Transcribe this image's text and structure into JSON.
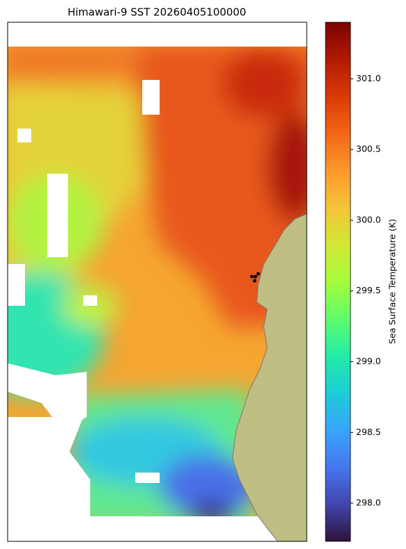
{
  "map": {
    "title": "Himawari-9 SST 20260405100000",
    "colorbar": {
      "label": "Sea Surface Temperature (K)",
      "clim": [
        297.73,
        301.4
      ],
      "ticks": [
        {
          "value": 298,
          "label": "298.0"
        },
        {
          "value": 298.5,
          "label": "298.5"
        },
        {
          "value": 299,
          "label": "299.0"
        },
        {
          "value": 299.5,
          "label": "299.5"
        },
        {
          "value": 300,
          "label": "300.0"
        },
        {
          "value": 300.5,
          "label": "300.5"
        },
        {
          "value": 301,
          "label": "301.0"
        }
      ]
    }
  }
}
